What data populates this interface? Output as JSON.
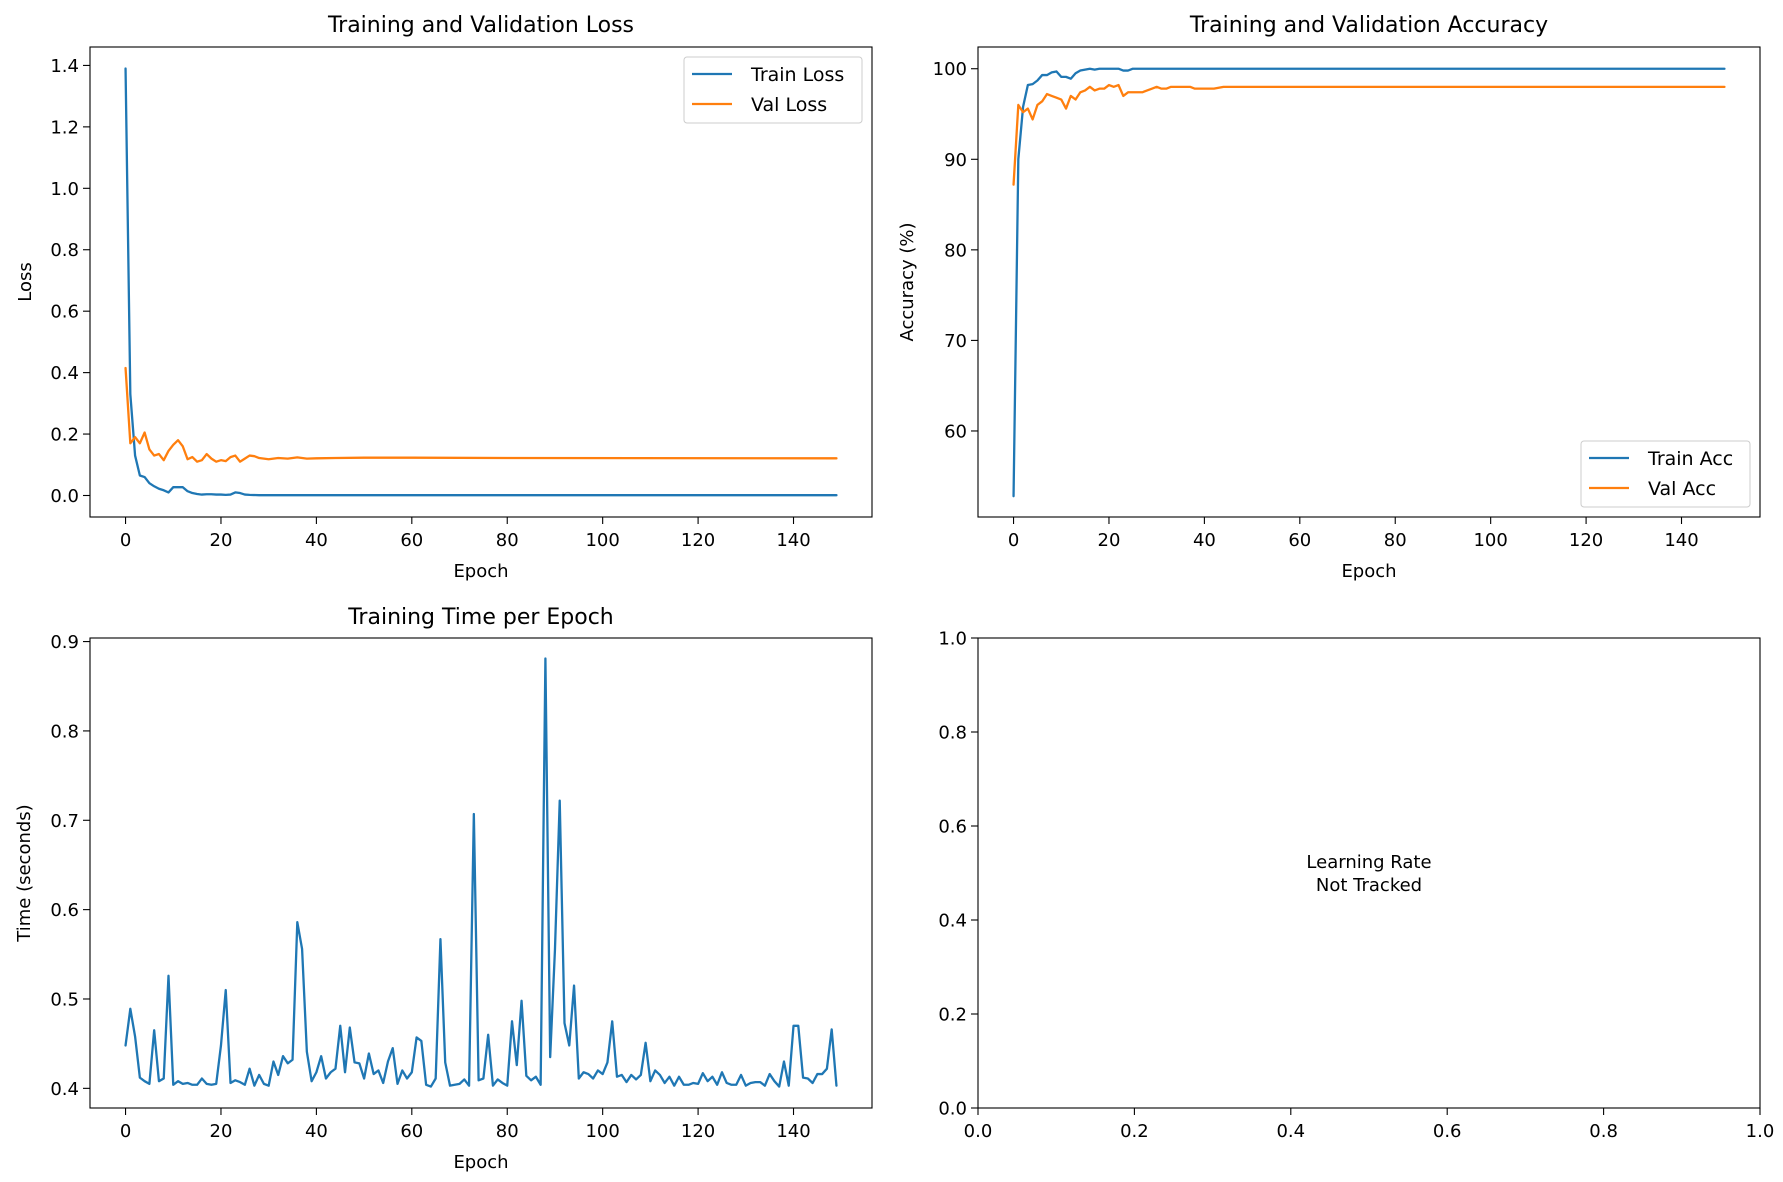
{
  "colors": {
    "train": "#1f77b4",
    "val": "#ff7f0e"
  },
  "chart_data": [
    {
      "type": "line",
      "title": "Training and Validation Loss",
      "xlabel": "Epoch",
      "ylabel": "Loss",
      "xlim": [
        -7.45,
        156.45
      ],
      "ylim": [
        -0.07,
        1.46
      ],
      "xticks": [
        0,
        20,
        40,
        60,
        80,
        100,
        120,
        140
      ],
      "yticks": [
        0.0,
        0.2,
        0.4,
        0.6,
        0.8,
        1.0,
        1.2,
        1.4
      ],
      "ytick_decimals": 1,
      "legend_position": "top-right",
      "series": [
        {
          "name": "Train Loss",
          "color": "#1f77b4",
          "points": [
            [
              0,
              1.39
            ],
            [
              1,
              0.33
            ],
            [
              2,
              0.13
            ],
            [
              3,
              0.065
            ],
            [
              4,
              0.06
            ],
            [
              5,
              0.04
            ],
            [
              6,
              0.03
            ],
            [
              7,
              0.022
            ],
            [
              8,
              0.017
            ],
            [
              9,
              0.01
            ],
            [
              10,
              0.027
            ],
            [
              11,
              0.027
            ],
            [
              12,
              0.027
            ],
            [
              13,
              0.014
            ],
            [
              14,
              0.008
            ],
            [
              15,
              0.005
            ],
            [
              16,
              0.003
            ],
            [
              17,
              0.004
            ],
            [
              18,
              0.004
            ],
            [
              19,
              0.003
            ],
            [
              20,
              0.003
            ],
            [
              21,
              0.002
            ],
            [
              22,
              0.003
            ],
            [
              23,
              0.01
            ],
            [
              24,
              0.008
            ],
            [
              25,
              0.003
            ],
            [
              26,
              0.002
            ],
            [
              28,
              0.001
            ],
            [
              30,
              0.001
            ],
            [
              149,
              0.001
            ]
          ]
        },
        {
          "name": "Val Loss",
          "color": "#ff7f0e",
          "points": [
            [
              0,
              0.415
            ],
            [
              1,
              0.17
            ],
            [
              2,
              0.19
            ],
            [
              3,
              0.17
            ],
            [
              4,
              0.205
            ],
            [
              5,
              0.15
            ],
            [
              6,
              0.13
            ],
            [
              7,
              0.135
            ],
            [
              8,
              0.115
            ],
            [
              9,
              0.145
            ],
            [
              10,
              0.165
            ],
            [
              11,
              0.18
            ],
            [
              12,
              0.16
            ],
            [
              13,
              0.118
            ],
            [
              14,
              0.125
            ],
            [
              15,
              0.11
            ],
            [
              16,
              0.115
            ],
            [
              17,
              0.135
            ],
            [
              18,
              0.12
            ],
            [
              19,
              0.11
            ],
            [
              20,
              0.115
            ],
            [
              21,
              0.112
            ],
            [
              22,
              0.125
            ],
            [
              23,
              0.13
            ],
            [
              24,
              0.11
            ],
            [
              25,
              0.12
            ],
            [
              26,
              0.13
            ],
            [
              27,
              0.128
            ],
            [
              28,
              0.122
            ],
            [
              29,
              0.12
            ],
            [
              30,
              0.118
            ],
            [
              32,
              0.122
            ],
            [
              34,
              0.12
            ],
            [
              36,
              0.124
            ],
            [
              38,
              0.12
            ],
            [
              40,
              0.121
            ],
            [
              44,
              0.122
            ],
            [
              50,
              0.123
            ],
            [
              60,
              0.123
            ],
            [
              80,
              0.122
            ],
            [
              149,
              0.121
            ]
          ]
        }
      ]
    },
    {
      "type": "line",
      "title": "Training and Validation Accuracy",
      "xlabel": "Epoch",
      "ylabel": "Accuracy (%)",
      "xlim": [
        -7.45,
        156.45
      ],
      "ylim": [
        50.5,
        102.4
      ],
      "xticks": [
        0,
        20,
        40,
        60,
        80,
        100,
        120,
        140
      ],
      "yticks": [
        60,
        70,
        80,
        90,
        100
      ],
      "ytick_decimals": 0,
      "legend_position": "bottom-right",
      "series": [
        {
          "name": "Train Acc",
          "color": "#1f77b4",
          "points": [
            [
              0,
              52.8
            ],
            [
              1,
              90
            ],
            [
              2,
              95.8
            ],
            [
              3,
              98.2
            ],
            [
              4,
              98.3
            ],
            [
              5,
              98.7
            ],
            [
              6,
              99.3
            ],
            [
              7,
              99.3
            ],
            [
              8,
              99.6
            ],
            [
              9,
              99.7
            ],
            [
              10,
              99.1
            ],
            [
              11,
              99.1
            ],
            [
              12,
              98.9
            ],
            [
              13,
              99.5
            ],
            [
              14,
              99.8
            ],
            [
              15,
              99.9
            ],
            [
              16,
              100
            ],
            [
              17,
              99.9
            ],
            [
              18,
              100
            ],
            [
              19,
              100
            ],
            [
              20,
              100
            ],
            [
              21,
              100
            ],
            [
              22,
              100
            ],
            [
              23,
              99.8
            ],
            [
              24,
              99.8
            ],
            [
              25,
              100
            ],
            [
              26,
              100
            ],
            [
              149,
              100
            ]
          ]
        },
        {
          "name": "Val Acc",
          "color": "#ff7f0e",
          "points": [
            [
              0,
              87.2
            ],
            [
              1,
              96
            ],
            [
              2,
              95.2
            ],
            [
              3,
              95.6
            ],
            [
              4,
              94.4
            ],
            [
              5,
              96
            ],
            [
              6,
              96.4
            ],
            [
              7,
              97.2
            ],
            [
              8,
              97
            ],
            [
              9,
              96.8
            ],
            [
              10,
              96.6
            ],
            [
              11,
              95.6
            ],
            [
              12,
              97
            ],
            [
              13,
              96.6
            ],
            [
              14,
              97.4
            ],
            [
              15,
              97.6
            ],
            [
              16,
              98
            ],
            [
              17,
              97.6
            ],
            [
              18,
              97.8
            ],
            [
              19,
              97.8
            ],
            [
              20,
              98.2
            ],
            [
              21,
              98
            ],
            [
              22,
              98.2
            ],
            [
              23,
              97
            ],
            [
              24,
              97.4
            ],
            [
              25,
              97.4
            ],
            [
              26,
              97.4
            ],
            [
              27,
              97.4
            ],
            [
              28,
              97.6
            ],
            [
              29,
              97.8
            ],
            [
              30,
              98
            ],
            [
              31,
              97.8
            ],
            [
              32,
              97.8
            ],
            [
              33,
              98
            ],
            [
              34,
              98
            ],
            [
              35,
              98
            ],
            [
              36,
              98
            ],
            [
              37,
              98
            ],
            [
              38,
              97.8
            ],
            [
              40,
              97.8
            ],
            [
              42,
              97.8
            ],
            [
              44,
              98
            ],
            [
              149,
              98
            ]
          ]
        }
      ]
    },
    {
      "type": "line",
      "title": "Training Time per Epoch",
      "xlabel": "Epoch",
      "ylabel": "Time (seconds)",
      "xlim": [
        -7.45,
        156.45
      ],
      "ylim": [
        0.378,
        0.904
      ],
      "xticks": [
        0,
        20,
        40,
        60,
        80,
        100,
        120,
        140
      ],
      "yticks": [
        0.4,
        0.5,
        0.6,
        0.7,
        0.8,
        0.9
      ],
      "ytick_decimals": 1,
      "series": [
        {
          "color": "#1f77b4",
          "values": [
            0.448,
            0.489,
            0.458,
            0.412,
            0.408,
            0.405,
            0.465,
            0.408,
            0.411,
            0.526,
            0.404,
            0.408,
            0.405,
            0.406,
            0.404,
            0.404,
            0.411,
            0.405,
            0.404,
            0.405,
            0.448,
            0.51,
            0.406,
            0.409,
            0.407,
            0.404,
            0.422,
            0.403,
            0.415,
            0.405,
            0.403,
            0.43,
            0.415,
            0.436,
            0.428,
            0.432,
            0.586,
            0.556,
            0.441,
            0.408,
            0.418,
            0.436,
            0.411,
            0.418,
            0.422,
            0.47,
            0.418,
            0.468,
            0.429,
            0.428,
            0.411,
            0.439,
            0.416,
            0.42,
            0.406,
            0.43,
            0.445,
            0.405,
            0.42,
            0.411,
            0.418,
            0.457,
            0.453,
            0.404,
            0.402,
            0.411,
            0.567,
            0.429,
            0.403,
            0.404,
            0.405,
            0.41,
            0.403,
            0.707,
            0.409,
            0.411,
            0.46,
            0.403,
            0.41,
            0.406,
            0.403,
            0.475,
            0.426,
            0.498,
            0.414,
            0.409,
            0.413,
            0.404,
            0.881,
            0.435,
            0.555,
            0.722,
            0.473,
            0.448,
            0.515,
            0.411,
            0.418,
            0.416,
            0.411,
            0.42,
            0.416,
            0.429,
            0.475,
            0.413,
            0.415,
            0.407,
            0.415,
            0.41,
            0.415,
            0.451,
            0.408,
            0.42,
            0.415,
            0.406,
            0.413,
            0.403,
            0.413,
            0.404,
            0.404,
            0.406,
            0.405,
            0.417,
            0.408,
            0.413,
            0.404,
            0.418,
            0.406,
            0.404,
            0.404,
            0.415,
            0.403,
            0.406,
            0.407,
            0.407,
            0.403,
            0.416,
            0.408,
            0.402,
            0.43,
            0.403,
            0.47,
            0.47,
            0.412,
            0.411,
            0.406,
            0.416,
            0.416,
            0.422,
            0.466,
            0.403
          ]
        }
      ]
    },
    {
      "type": "text",
      "xlim": [
        0.0,
        1.0
      ],
      "ylim": [
        0.0,
        1.0
      ],
      "xticks": [
        0.0,
        0.2,
        0.4,
        0.6,
        0.8,
        1.0
      ],
      "yticks": [
        0.0,
        0.2,
        0.4,
        0.6,
        0.8,
        1.0
      ],
      "xtick_decimals": 1,
      "ytick_decimals": 1,
      "annotation": [
        "Learning Rate",
        "Not Tracked"
      ]
    }
  ]
}
